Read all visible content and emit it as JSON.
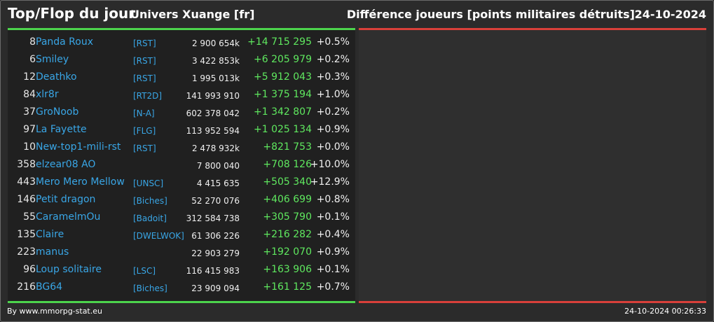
{
  "header": {
    "title": "Top/Flop du jour",
    "universe": "Univers Xuange [fr]",
    "metric": "Différence joueurs [points militaires détruits]",
    "date": "24-10-2024"
  },
  "colors": {
    "top_bar": "#4cd44c",
    "flop_bar": "#d9403a",
    "link": "#39a6e6",
    "positive": "#5fe85f"
  },
  "top": [
    {
      "rank": "8",
      "name": "Panda Roux",
      "alliance": "[RST]",
      "total": "2 900 654k",
      "diff": "+14 715 295",
      "pct": "+0.5%"
    },
    {
      "rank": "6",
      "name": "Smiley",
      "alliance": "[RST]",
      "total": "3 422 853k",
      "diff": "+6 205 979",
      "pct": "+0.2%"
    },
    {
      "rank": "12",
      "name": "Deathko",
      "alliance": "[RST]",
      "total": "1 995 013k",
      "diff": "+5 912 043",
      "pct": "+0.3%"
    },
    {
      "rank": "84",
      "name": "xlr8r",
      "alliance": "[RT2D]",
      "total": "141 993 910",
      "diff": "+1 375 194",
      "pct": "+1.0%"
    },
    {
      "rank": "37",
      "name": "GroNoob",
      "alliance": "[N-A]",
      "total": "602 378 042",
      "diff": "+1 342 807",
      "pct": "+0.2%"
    },
    {
      "rank": "97",
      "name": "La Fayette",
      "alliance": "[FLG]",
      "total": "113 952 594",
      "diff": "+1 025 134",
      "pct": "+0.9%"
    },
    {
      "rank": "10",
      "name": "New-top1-mili-rst",
      "alliance": "[RST]",
      "total": "2 478 932k",
      "diff": "+821 753",
      "pct": "+0.0%"
    },
    {
      "rank": "358",
      "name": "elzear08 AO",
      "alliance": "",
      "total": "7 800 040",
      "diff": "+708 126",
      "pct": "+10.0%"
    },
    {
      "rank": "443",
      "name": "Mero Mero Mellow",
      "alliance": "[UNSC]",
      "total": "4 415 635",
      "diff": "+505 340",
      "pct": "+12.9%"
    },
    {
      "rank": "146",
      "name": "Petit dragon",
      "alliance": "[Biches]",
      "total": "52 270 076",
      "diff": "+406 699",
      "pct": "+0.8%"
    },
    {
      "rank": "55",
      "name": "CaramelmOu",
      "alliance": "[Badoit]",
      "total": "312 584 738",
      "diff": "+305 790",
      "pct": "+0.1%"
    },
    {
      "rank": "135",
      "name": "Claire",
      "alliance": "[DWELWOK]",
      "total": "61 306 226",
      "diff": "+216 282",
      "pct": "+0.4%"
    },
    {
      "rank": "223",
      "name": "manus",
      "alliance": "",
      "total": "22 903 279",
      "diff": "+192 070",
      "pct": "+0.9%"
    },
    {
      "rank": "96",
      "name": "Loup solitaire",
      "alliance": "[LSC]",
      "total": "116 415 983",
      "diff": "+163 906",
      "pct": "+0.1%"
    },
    {
      "rank": "216",
      "name": "BG64",
      "alliance": "[Biches]",
      "total": "23 909 094",
      "diff": "+161 125",
      "pct": "+0.7%"
    }
  ],
  "footer": {
    "credit": "By www.mmorpg-stat.eu",
    "timestamp": "24-10-2024 00:26:33"
  }
}
